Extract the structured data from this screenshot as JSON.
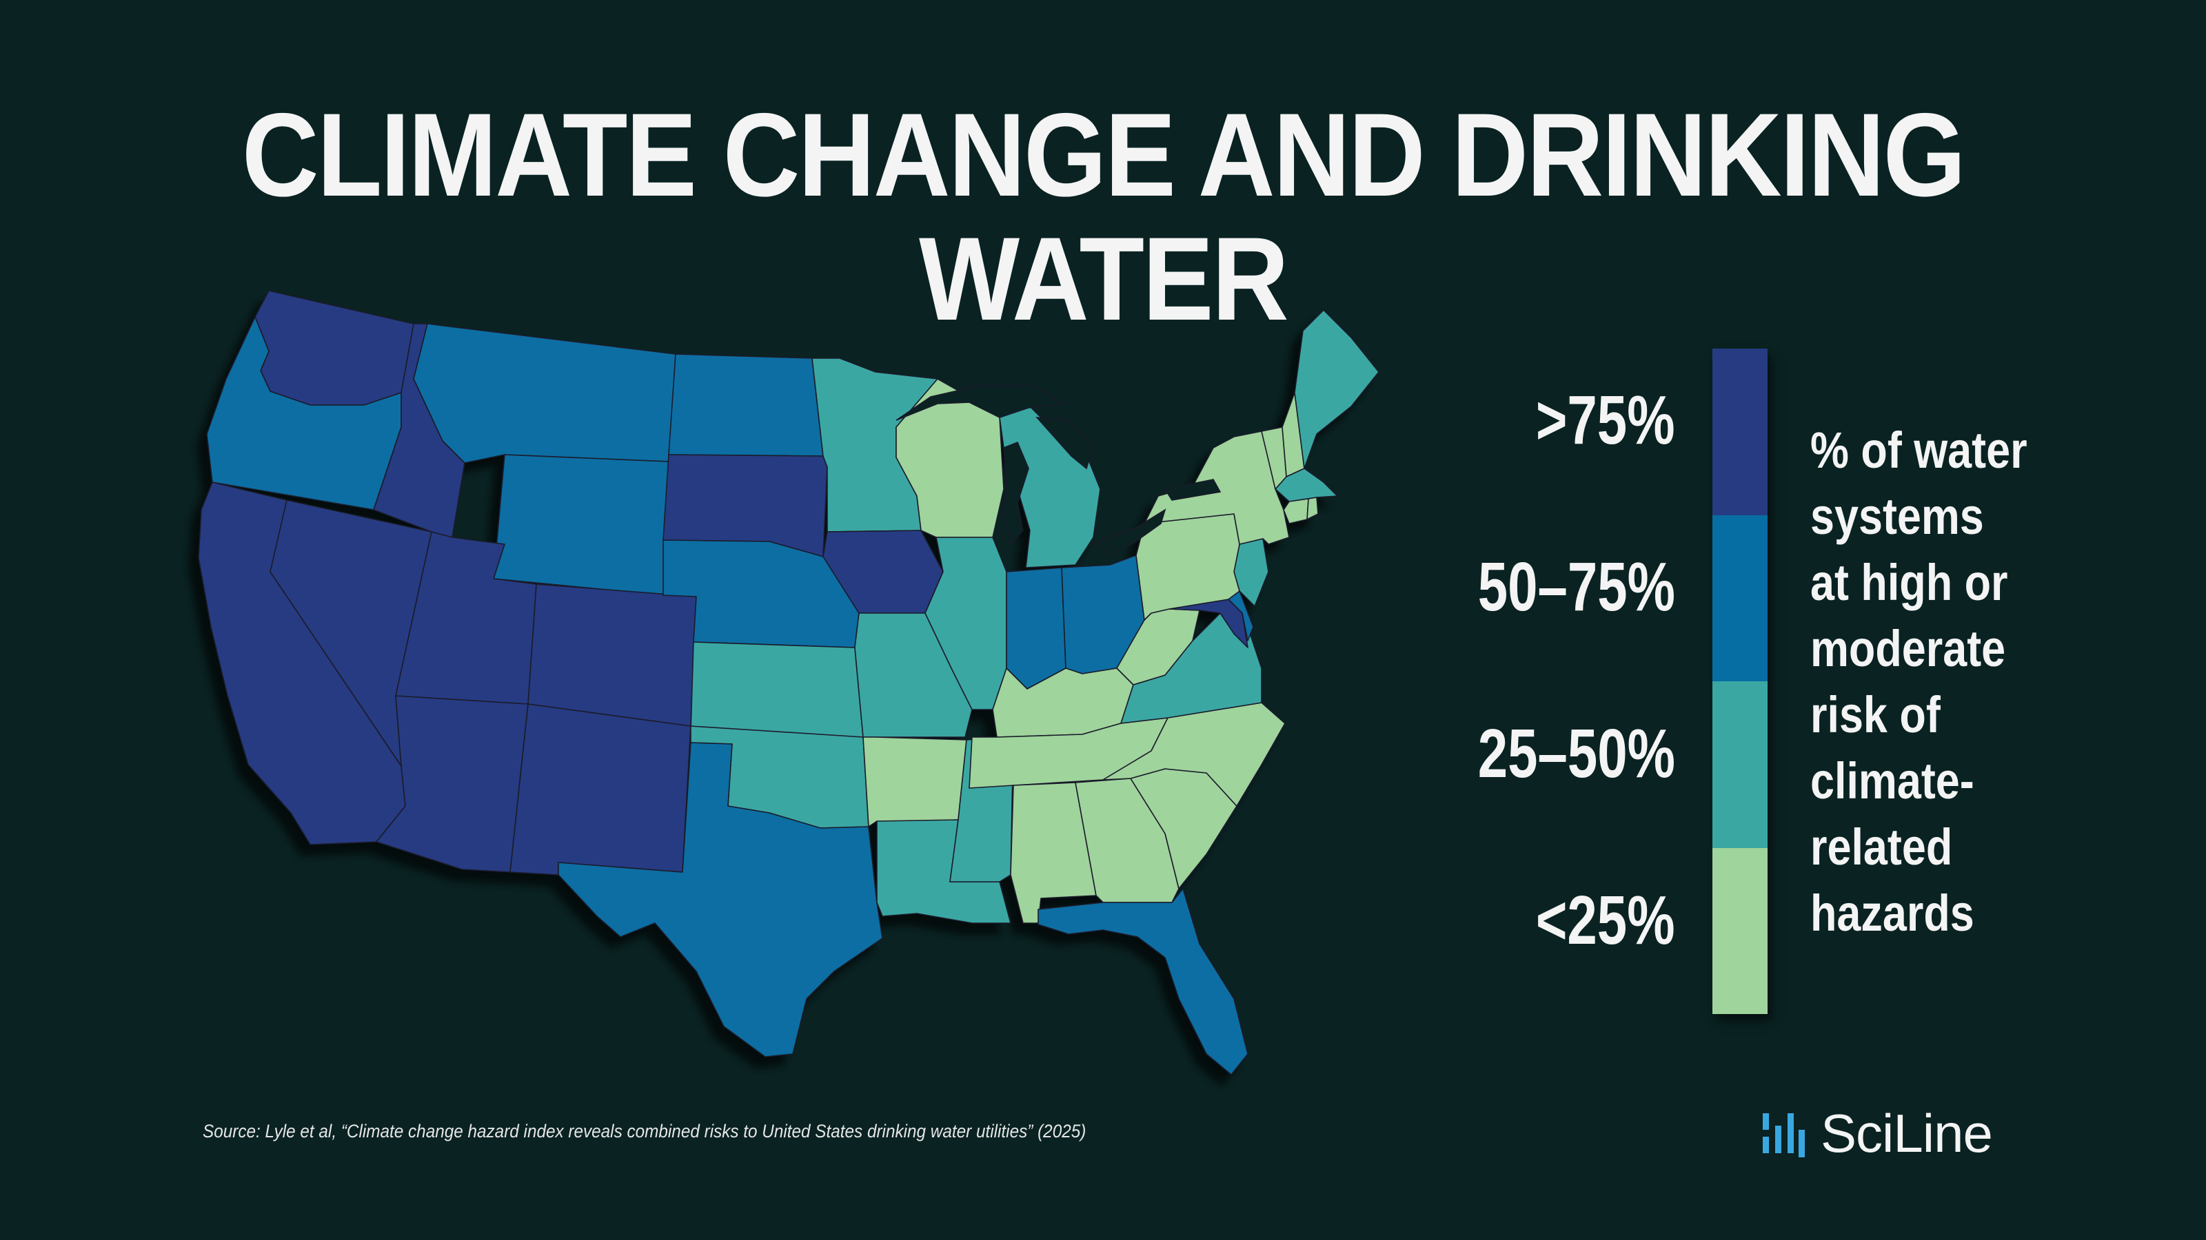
{
  "title": "CLIMATE CHANGE AND DRINKING WATER",
  "map": {
    "type": "choropleth",
    "region": "Contiguous United States",
    "colors": {
      "over_75": "#273b82",
      "50_75": "#076ea3",
      "25_50": "#3aa7a3",
      "under_25": "#9fd49c"
    },
    "states": {
      "WA": "over_75",
      "OR": "50_75",
      "CA": "over_75",
      "NV": "over_75",
      "ID": "over_75",
      "MT": "50_75",
      "WY": "50_75",
      "UT": "over_75",
      "CO": "over_75",
      "AZ": "over_75",
      "NM": "over_75",
      "ND": "50_75",
      "SD": "over_75",
      "NE": "50_75",
      "KS": "25_50",
      "OK": "25_50",
      "TX": "50_75",
      "MN": "25_50",
      "IA": "over_75",
      "MO": "25_50",
      "AR": "under_25",
      "LA": "25_50",
      "WI": "under_25",
      "IL": "25_50",
      "MS": "25_50",
      "MI": "25_50",
      "IN": "50_75",
      "OH": "50_75",
      "KY": "under_25",
      "TN": "under_25",
      "AL": "under_25",
      "GA": "under_25",
      "FL": "50_75",
      "SC": "under_25",
      "NC": "under_25",
      "VA": "25_50",
      "WV": "under_25",
      "MD": "over_75",
      "DE": "50_75",
      "NJ": "25_50",
      "PA": "under_25",
      "NY": "under_25",
      "VT": "under_25",
      "NH": "under_25",
      "ME": "25_50",
      "MA": "25_50",
      "CT": "under_25",
      "RI": "under_25"
    }
  },
  "legend": {
    "title": "% of water systems at high or moderate risk of climate-related hazards",
    "title_lines": [
      "% of water",
      "systems",
      "at high or",
      "moderate",
      "risk of",
      "climate-",
      "related",
      "hazards"
    ],
    "items": [
      {
        "label": ">75%",
        "key": "over_75",
        "color": "#273b82"
      },
      {
        "label": "50–75%",
        "key": "50_75",
        "color": "#076ea3"
      },
      {
        "label": "25–50%",
        "key": "25_50",
        "color": "#3aa7a3"
      },
      {
        "label": "<25%",
        "key": "under_25",
        "color": "#9fd49c"
      }
    ]
  },
  "source": "Source: Lyle et al, “Climate change hazard index reveals combined risks to United States drinking water utilities” (2025)",
  "logo": {
    "text": "SciLine",
    "mark_color": "#3aa8e0"
  }
}
